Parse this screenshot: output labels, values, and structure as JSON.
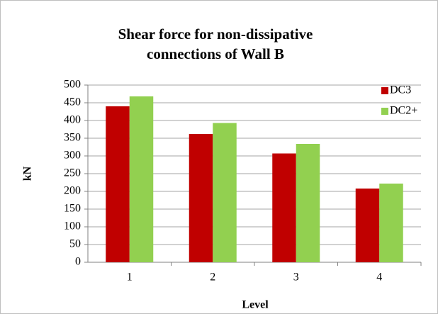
{
  "chart_data": {
    "type": "bar",
    "title": "Shear force for non-dissipative connections of Wall B",
    "x_label": "Level",
    "y_label": "kN",
    "categories": [
      "1",
      "2",
      "3",
      "4"
    ],
    "series": [
      {
        "name": "DC3",
        "color": "#c00000",
        "values": [
          440,
          362,
          307,
          208
        ]
      },
      {
        "name": "DC2+",
        "color": "#92d050",
        "values": [
          468,
          393,
          334,
          222
        ]
      }
    ],
    "ylim": [
      0,
      500
    ],
    "yticks": [
      0,
      50,
      100,
      150,
      200,
      250,
      300,
      350,
      400,
      450,
      500
    ],
    "grid": true,
    "legend": "right"
  }
}
